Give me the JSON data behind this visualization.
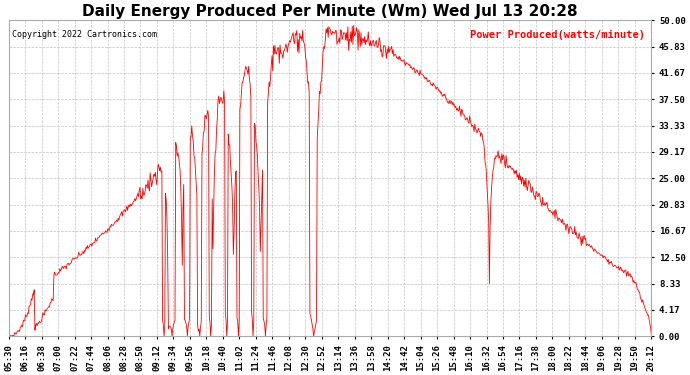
{
  "title": "Daily Energy Produced Per Minute (Wm) Wed Jul 13 20:28",
  "copyright_text": "Copyright 2022 Cartronics.com",
  "legend_label": "Power Produced(watts/minute)",
  "ylabel_right_values": [
    0.0,
    4.17,
    8.33,
    12.5,
    16.67,
    20.83,
    25.0,
    29.17,
    33.33,
    37.5,
    41.67,
    45.83,
    50.0
  ],
  "ymax": 50.0,
  "ymin": 0.0,
  "line_color": "red",
  "grid_color": "#bbbbbb",
  "background_color": "#ffffff",
  "title_fontsize": 11,
  "tick_label_fontsize": 6.5,
  "x_tick_labels": [
    "05:30",
    "06:16",
    "06:38",
    "07:00",
    "07:22",
    "07:44",
    "08:06",
    "08:28",
    "08:50",
    "09:12",
    "09:34",
    "09:56",
    "10:18",
    "10:40",
    "11:02",
    "11:24",
    "11:46",
    "12:08",
    "12:30",
    "12:52",
    "13:14",
    "13:36",
    "13:58",
    "14:20",
    "14:42",
    "15:04",
    "15:26",
    "15:48",
    "16:10",
    "16:32",
    "16:54",
    "17:16",
    "17:38",
    "18:00",
    "18:22",
    "18:44",
    "19:06",
    "19:28",
    "19:50",
    "20:12"
  ],
  "figwidth": 6.9,
  "figheight": 3.75,
  "dpi": 100
}
